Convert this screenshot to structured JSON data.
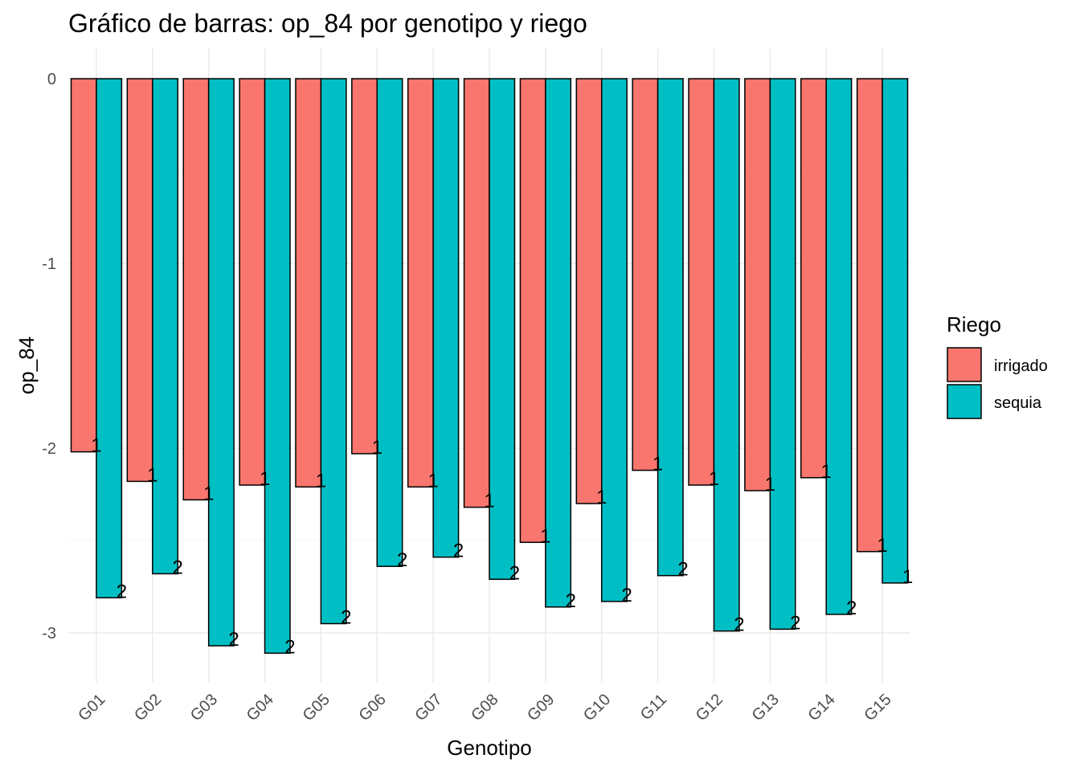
{
  "chart_data": {
    "type": "bar",
    "title": "Gráfico de barras: op_84 por genotipo y riego",
    "xlabel": "Genotipo",
    "ylabel": "op_84",
    "categories": [
      "G01",
      "G02",
      "G03",
      "G04",
      "G05",
      "G06",
      "G07",
      "G08",
      "G09",
      "G10",
      "G11",
      "G12",
      "G13",
      "G14",
      "G15"
    ],
    "series": [
      {
        "name": "irrigado",
        "color": "#F8766D",
        "values": [
          -2.02,
          -2.18,
          -2.28,
          -2.2,
          -2.21,
          -2.03,
          -2.21,
          -2.32,
          -2.51,
          -2.3,
          -2.12,
          -2.2,
          -2.23,
          -2.16,
          -2.56
        ],
        "labels": [
          "1",
          "1",
          "1",
          "1",
          "1",
          "1",
          "1",
          "1",
          "1",
          "1",
          "1",
          "1",
          "1",
          "1",
          "1"
        ]
      },
      {
        "name": "sequia",
        "color": "#00BFC4",
        "values": [
          -2.81,
          -2.68,
          -3.07,
          -3.11,
          -2.95,
          -2.64,
          -2.59,
          -2.71,
          -2.86,
          -2.83,
          -2.69,
          -2.99,
          -2.98,
          -2.9,
          -2.73
        ],
        "labels": [
          "2",
          "2",
          "2",
          "2",
          "2",
          "2",
          "2",
          "2",
          "2",
          "2",
          "2",
          "2",
          "2",
          "2",
          "1"
        ]
      }
    ],
    "ylim": [
      -3.25,
      0.15
    ],
    "yticks": [
      0,
      -1,
      -2,
      -3
    ],
    "ytick_labels": [
      "0",
      "-1",
      "-2",
      "-3"
    ],
    "grid": true,
    "legend": {
      "title": "Riego",
      "position": "right"
    }
  }
}
